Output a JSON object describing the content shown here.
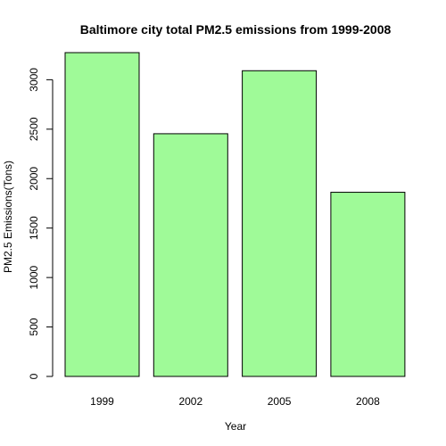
{
  "chart_data": {
    "type": "bar",
    "title": "Baltimore city total PM2.5 emissions from 1999-2008",
    "xlabel": "Year",
    "ylabel": "PM2.5 Emissions(Tons)",
    "categories": [
      "1999",
      "2002",
      "2005",
      "2008"
    ],
    "values": [
      3274,
      2454,
      3091,
      1862
    ],
    "ylim": [
      0,
      3274
    ],
    "yticks": [
      0,
      500,
      1000,
      1500,
      2000,
      2500,
      3000
    ],
    "bar_color": "#9ffa98",
    "grid": false
  }
}
